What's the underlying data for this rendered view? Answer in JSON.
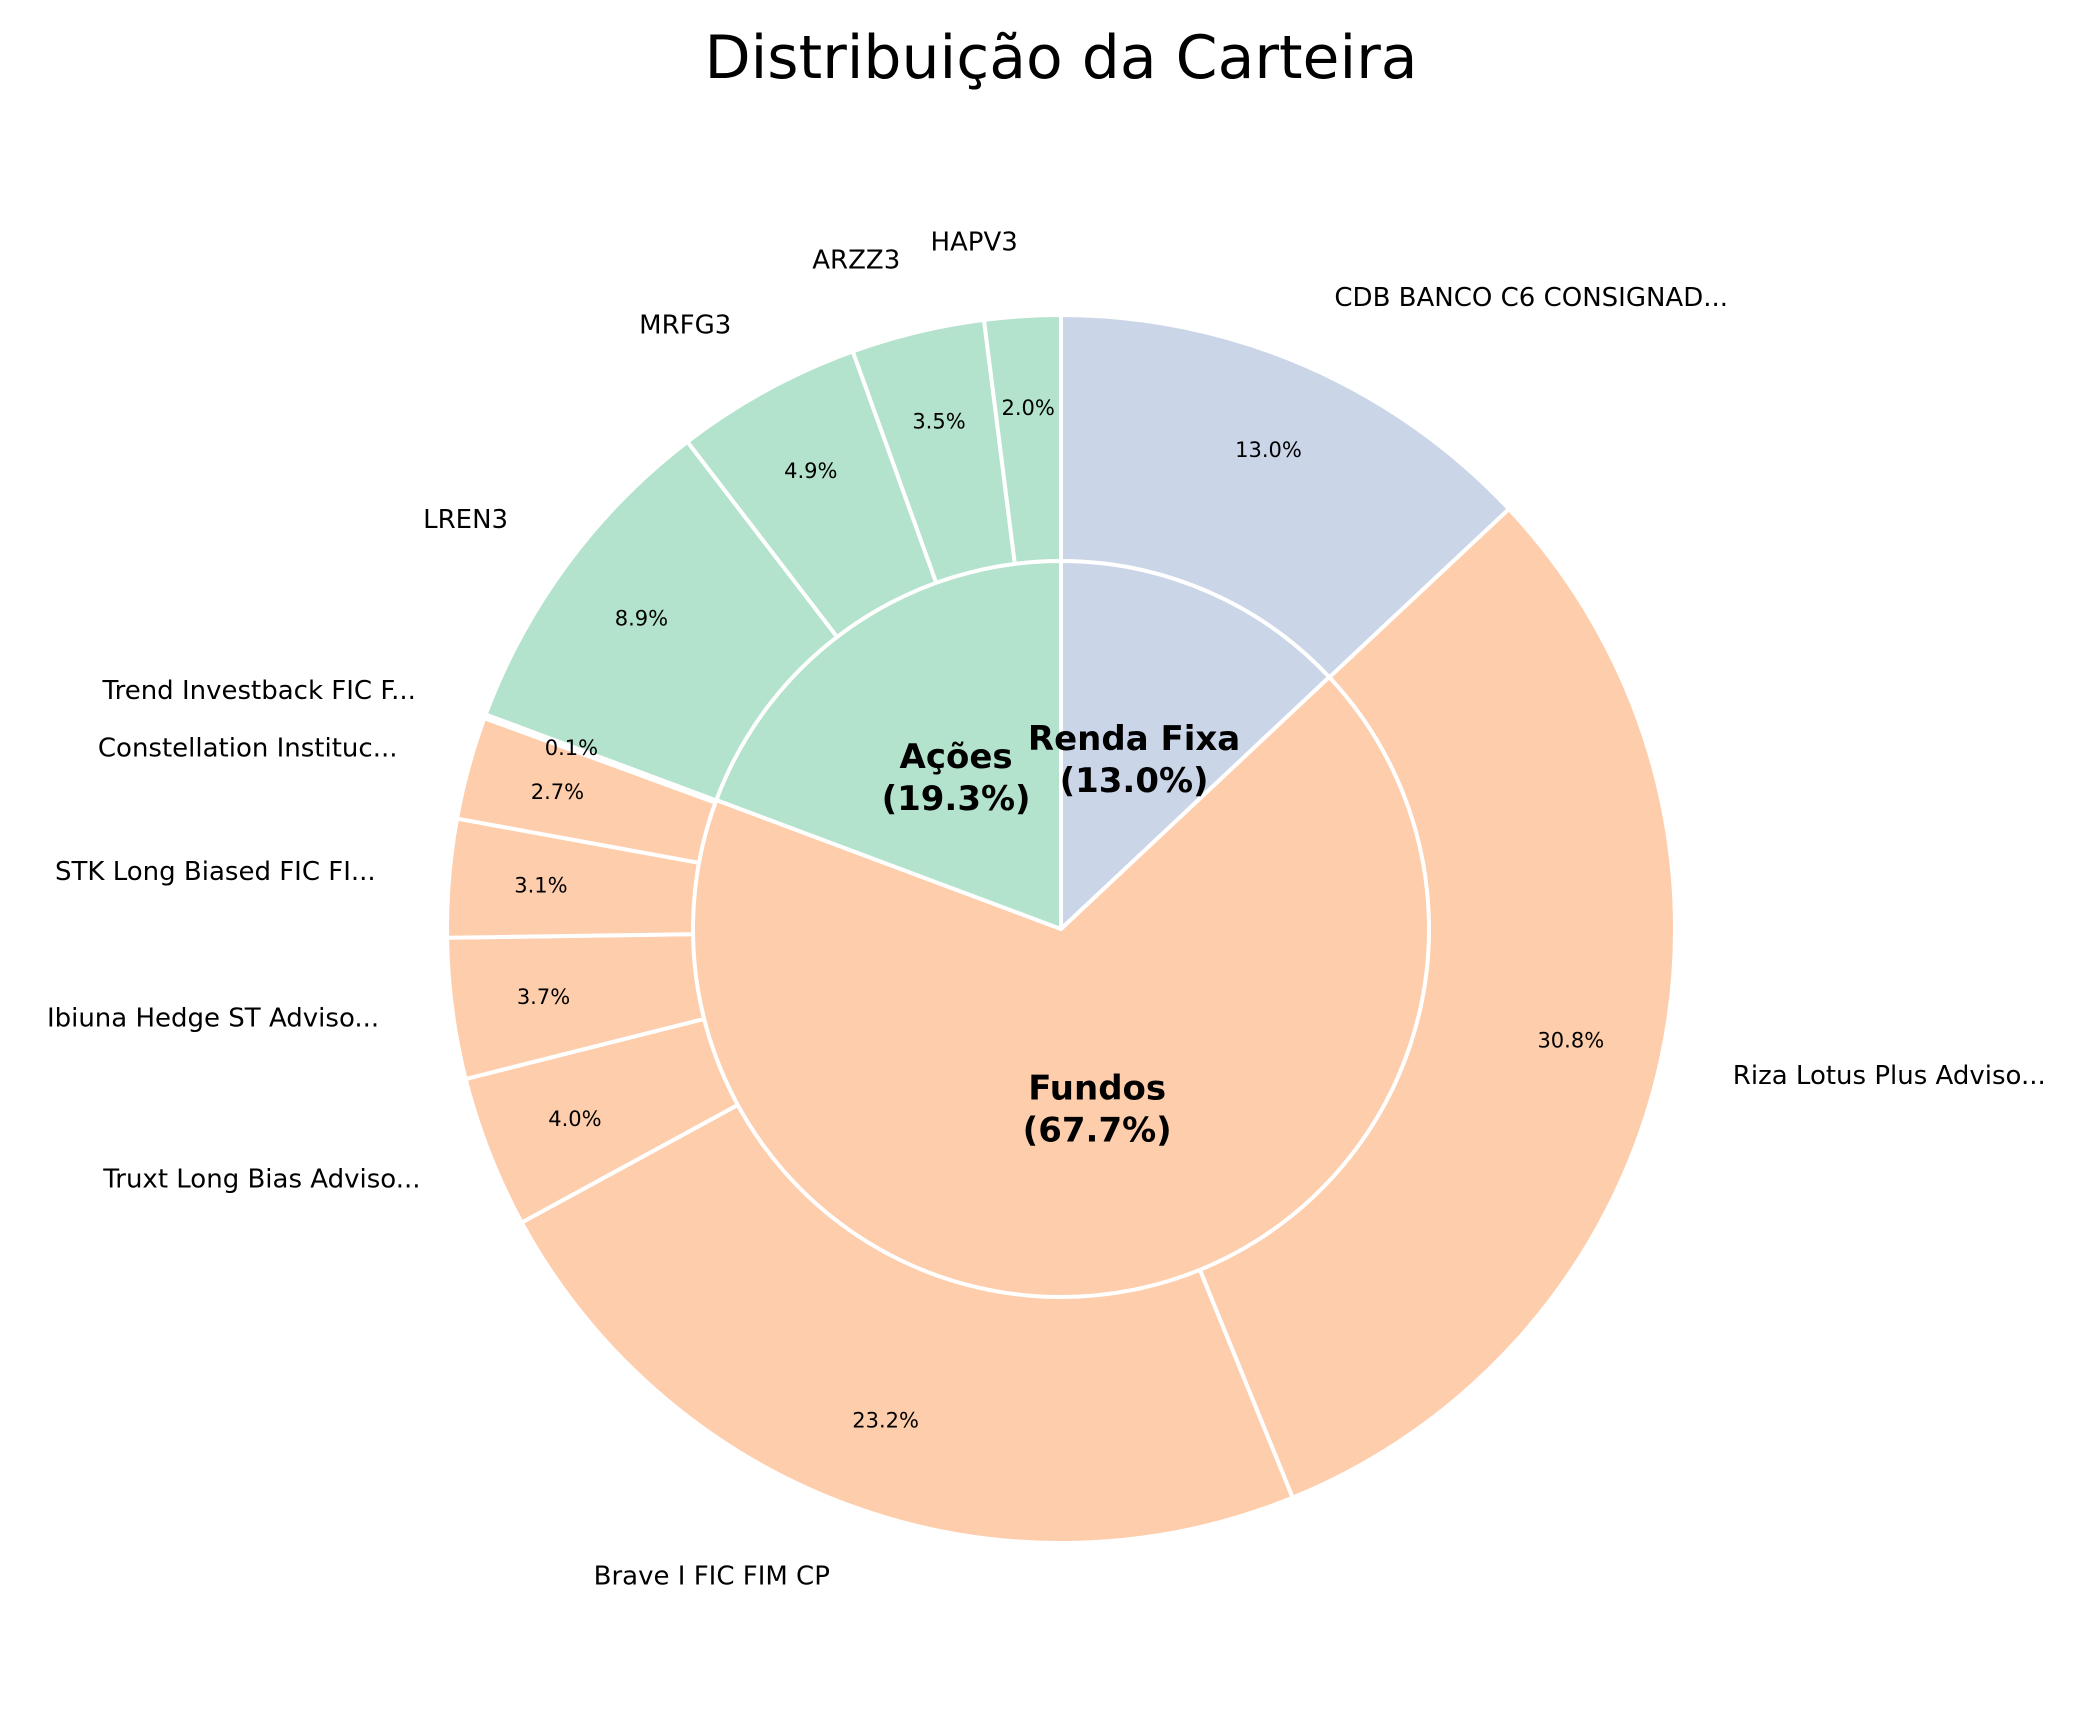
{
  "chart_data": {
    "type": "pie",
    "title": "Distribuição da Carteira",
    "inner_ring": [
      {
        "name": "Renda Fixa",
        "label": "(13.0%)",
        "value": 13.0,
        "color": "#cbd5e8"
      },
      {
        "name": "Fundos",
        "label": "(67.7%)",
        "value": 67.7,
        "color": "#fdcdac"
      },
      {
        "name": "Ações",
        "label": "(19.3%)",
        "value": 19.3,
        "color": "#b3e2cd"
      }
    ],
    "outer_ring": [
      {
        "name": "CDB BANCO C6 CONSIGNAD...",
        "value": 13.0,
        "pct": "13.0%",
        "group": "Renda Fixa"
      },
      {
        "name": "Riza Lotus Plus Adviso...",
        "value": 30.8,
        "pct": "30.8%",
        "group": "Fundos"
      },
      {
        "name": "Brave I FIC FIM CP",
        "value": 23.2,
        "pct": "23.2%",
        "group": "Fundos"
      },
      {
        "name": "Truxt Long Bias Adviso...",
        "value": 4.0,
        "pct": "4.0%",
        "group": "Fundos"
      },
      {
        "name": "Ibiuna Hedge ST Adviso...",
        "value": 3.7,
        "pct": "3.7%",
        "group": "Fundos"
      },
      {
        "name": "STK Long Biased FIC FI...",
        "value": 3.1,
        "pct": "3.1%",
        "group": "Fundos"
      },
      {
        "name": "Constellation Instituc...",
        "value": 2.7,
        "pct": "2.7%",
        "group": "Fundos"
      },
      {
        "name": "Trend Investback FIC F...",
        "value": 0.1,
        "pct": "0.1%",
        "group": "Fundos"
      },
      {
        "name": "LREN3",
        "value": 8.9,
        "pct": "8.9%",
        "group": "Ações"
      },
      {
        "name": "MRFG3",
        "value": 4.9,
        "pct": "4.9%",
        "group": "Ações"
      },
      {
        "name": "ARZZ3",
        "value": 3.5,
        "pct": "3.5%",
        "group": "Ações"
      },
      {
        "name": "HAPV3",
        "value": 2.0,
        "pct": "2.0%",
        "group": "Ações"
      }
    ]
  }
}
